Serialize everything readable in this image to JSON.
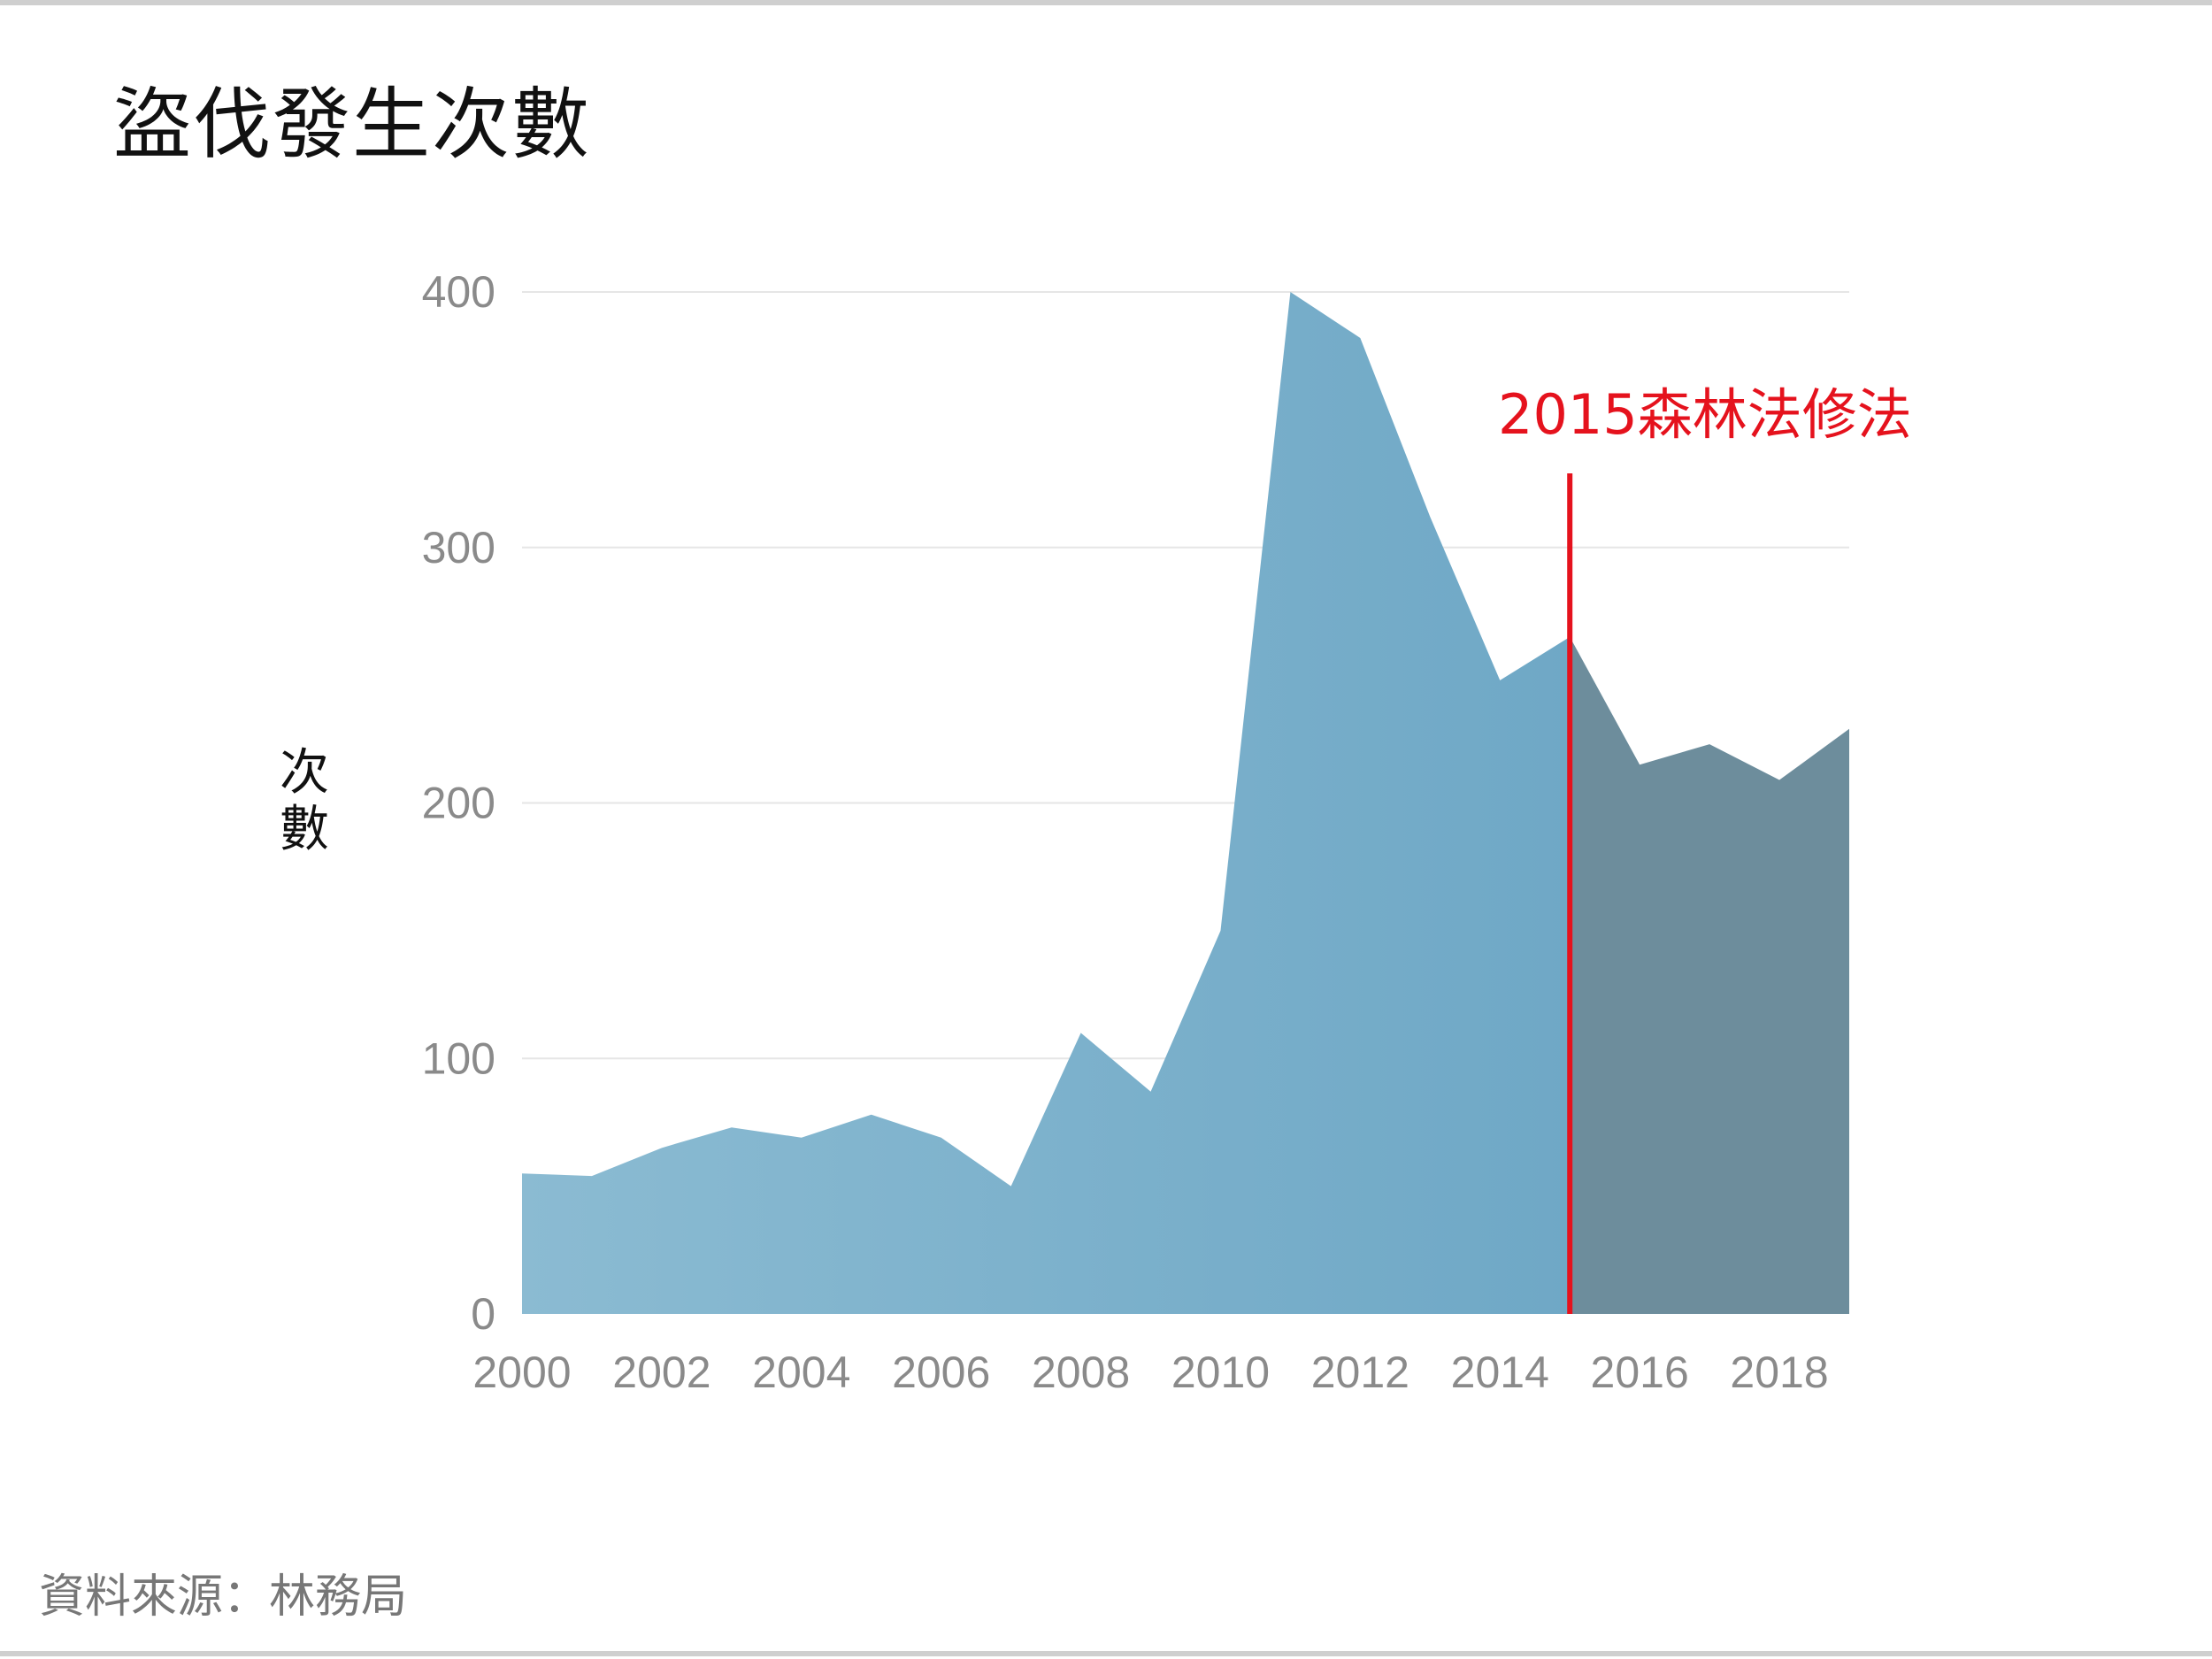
{
  "title": "盜伐發生次數",
  "source": "資料來源：林務局",
  "chart_data": {
    "type": "area",
    "ylabel": "次數",
    "ylim": [
      0,
      400
    ],
    "yticks": [
      0,
      100,
      200,
      300,
      400
    ],
    "xticks": [
      2000,
      2002,
      2004,
      2006,
      2008,
      2010,
      2012,
      2014,
      2016,
      2018
    ],
    "x": [
      2000,
      2001,
      2002,
      2003,
      2004,
      2005,
      2006,
      2007,
      2008,
      2009,
      2010,
      2011,
      2012,
      2013,
      2014,
      2015,
      2016,
      2017,
      2018,
      2019
    ],
    "values": [
      55,
      54,
      65,
      73,
      69,
      78,
      69,
      50,
      110,
      87,
      150,
      400,
      382,
      312,
      248,
      265,
      215,
      223,
      209,
      229
    ],
    "grid": true,
    "annotation": {
      "x": 2015,
      "label": "2015森林法修法",
      "color": "#e5121d"
    },
    "colors": {
      "before": "#7fb3cc",
      "after": "#6d8d9c"
    }
  }
}
